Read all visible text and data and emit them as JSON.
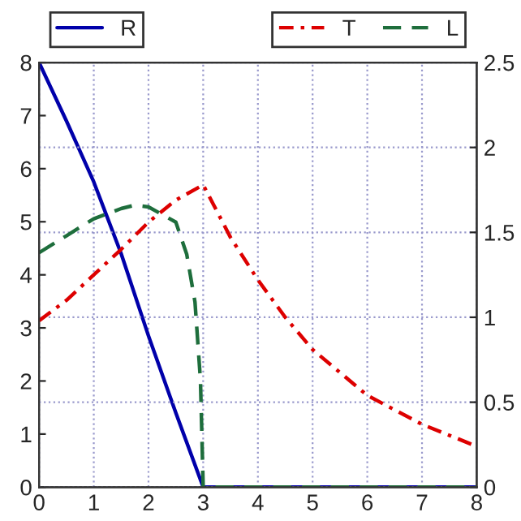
{
  "chart_data": {
    "type": "line",
    "xlim": [
      0,
      8
    ],
    "xticks": [
      0,
      1,
      2,
      3,
      4,
      5,
      6,
      7,
      8
    ],
    "ylim": [
      0,
      8
    ],
    "yticks": [
      0,
      1,
      2,
      3,
      4,
      5,
      6,
      7,
      8
    ],
    "y2lim": [
      0,
      2.5
    ],
    "y2ticks": [
      0,
      0.5,
      1,
      1.5,
      2,
      2.5
    ],
    "grid": true,
    "legend": "top",
    "marker": "none",
    "series": [
      {
        "name": "R",
        "color": "#0000aa",
        "line_style": "solid",
        "axis": "y",
        "x": [
          0,
          0.5,
          1,
          1.5,
          2,
          2.5,
          3,
          4,
          5,
          6,
          7,
          8
        ],
        "values": [
          8,
          6.9,
          5.75,
          4.4,
          2.85,
          1.4,
          0,
          0,
          0,
          0,
          0,
          0
        ]
      },
      {
        "name": "T",
        "color": "#dd0000",
        "line_style": "dashdot",
        "axis": "y2",
        "x": [
          0,
          0.5,
          1,
          1.5,
          2,
          2.5,
          3,
          3.5,
          4,
          4.5,
          5,
          6,
          7,
          8
        ],
        "values": [
          0.98,
          1.1,
          1.25,
          1.4,
          1.56,
          1.69,
          1.78,
          1.47,
          1.22,
          1.0,
          0.81,
          0.54,
          0.37,
          0.24
        ]
      },
      {
        "name": "L",
        "color": "#1e6e3c",
        "line_style": "dashed",
        "axis": "y2",
        "x": [
          0,
          0.5,
          1,
          1.5,
          1.75,
          2,
          2.5,
          2.7,
          2.85,
          2.95,
          3,
          4,
          5,
          6,
          7,
          8
        ],
        "values": [
          1.38,
          1.48,
          1.58,
          1.64,
          1.66,
          1.65,
          1.56,
          1.37,
          1.09,
          0.63,
          0,
          0,
          0,
          0,
          0,
          0
        ]
      }
    ]
  }
}
